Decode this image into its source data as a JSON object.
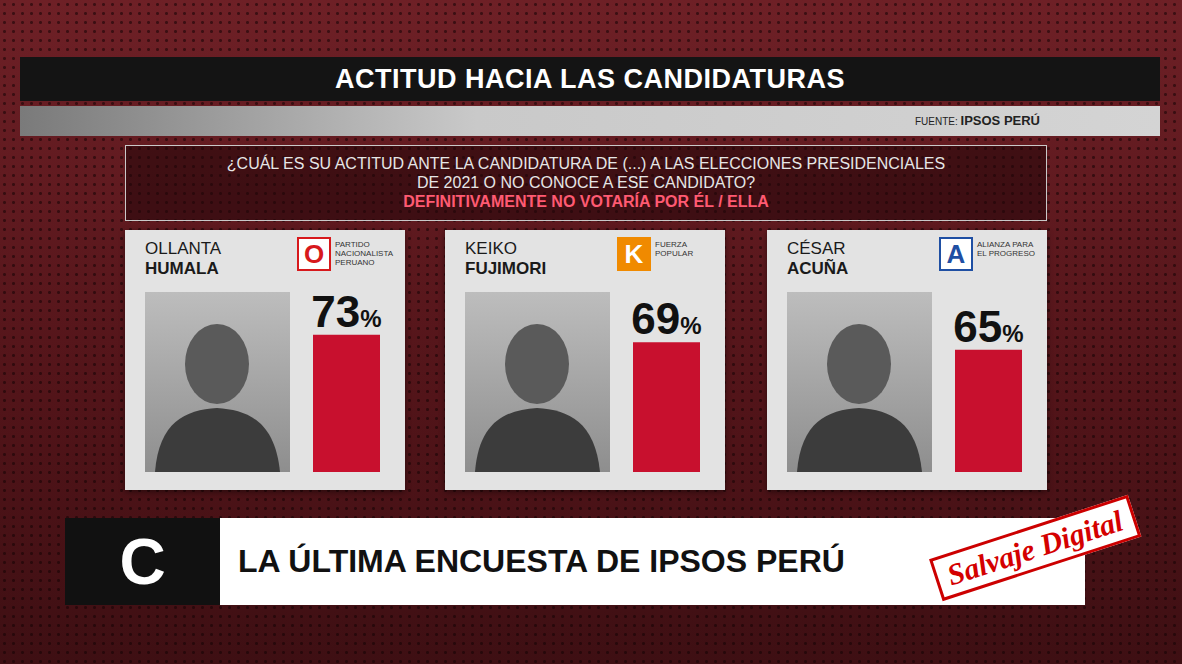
{
  "header": {
    "title": "ACTITUD HACIA LAS CANDIDATURAS",
    "source": "FUENTE: IPSOS PERÚ"
  },
  "chart_data": {
    "type": "bar",
    "title": "¿CUÁL ES SU ACTITUD ANTE LA CANDIDATURA DE (...) A LAS ELECCIONES PRESIDENCIALES DE 2021 O NO CONOCE A ESE CANDIDATO?",
    "subtitle": "DEFINITIVAMENTE NO VOTARÍA POR ÉL / ELLA",
    "categories": [
      "OLLANTA HUMALA",
      "KEIKO FUJIMORI",
      "CÉSAR ACUÑA"
    ],
    "values": [
      73,
      69,
      65
    ],
    "value_labels": [
      "73%",
      "69%",
      "65%"
    ],
    "color": "#c8102e",
    "ylim": [
      0,
      100
    ],
    "tick_labels": false,
    "data_labels": true,
    "grid": false
  },
  "parties": [
    {
      "logo": "O",
      "name": "PARTIDO NACIONALISTA PERUANO"
    },
    {
      "logo": "K",
      "name": "FUERZA POPULAR"
    },
    {
      "logo": "A",
      "name": "ALIANZA PARA EL PROGRESO"
    }
  ],
  "footer": {
    "logo": "C",
    "text": "LA ÚLTIMA ENCUESTA DE IPSOS PERÚ"
  },
  "watermark": "Salvaje Digital"
}
